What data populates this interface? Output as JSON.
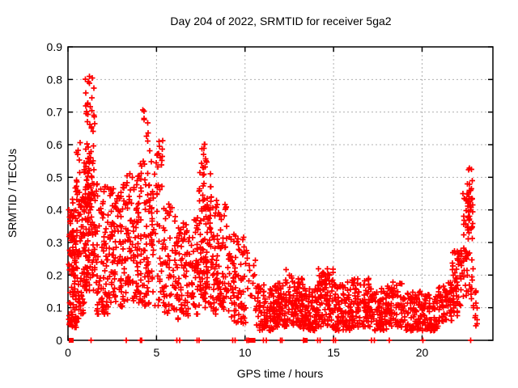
{
  "chart_data": {
    "type": "scatter",
    "title": "Day 204 of 2022, SRMTID for receiver 5ga2",
    "xlabel": "GPS time / hours",
    "ylabel": "SRMTID / TECUs",
    "xlim": [
      0,
      24
    ],
    "ylim": [
      0,
      0.9
    ],
    "xticks": [
      0,
      5,
      10,
      15,
      20
    ],
    "yticks": [
      0,
      0.1,
      0.2,
      0.3,
      0.4,
      0.5,
      0.6,
      0.7,
      0.8,
      0.9
    ],
    "grid": "dashed",
    "grid_color": "#b0b0b0",
    "border_color": "#000000",
    "legend": "none",
    "marker": "plus",
    "marker_color": "#ff0000",
    "marker_size_px": 7,
    "seed": 11,
    "cluster_fields": [
      "x_start_hours",
      "x_end_hours",
      "count",
      "y_min",
      "y_max",
      "low_skew"
    ],
    "clusters": [
      [
        0.05,
        0.6,
        110,
        0.04,
        0.47,
        1.4
      ],
      [
        0.1,
        0.45,
        18,
        0.25,
        0.4,
        1.0
      ],
      [
        0.45,
        0.75,
        10,
        0.45,
        0.62,
        1.0
      ],
      [
        0.6,
        0.95,
        45,
        0.08,
        0.45,
        1.15
      ],
      [
        0.9,
        1.55,
        140,
        0.15,
        0.57,
        0.95
      ],
      [
        0.95,
        1.5,
        30,
        0.55,
        0.81,
        1.0
      ],
      [
        1.55,
        2.25,
        80,
        0.08,
        0.48,
        1.2
      ],
      [
        2.25,
        3.1,
        95,
        0.1,
        0.47,
        1.15
      ],
      [
        3.1,
        4.0,
        100,
        0.12,
        0.52,
        1.1
      ],
      [
        4.0,
        4.6,
        70,
        0.1,
        0.55,
        1.1
      ],
      [
        4.2,
        4.55,
        8,
        0.6,
        0.71,
        1.0
      ],
      [
        4.6,
        5.4,
        75,
        0.1,
        0.62,
        1.2
      ],
      [
        5.4,
        6.1,
        55,
        0.08,
        0.42,
        1.3
      ],
      [
        6.1,
        6.7,
        32,
        0.22,
        0.37,
        1.0
      ],
      [
        6.1,
        6.7,
        30,
        0.05,
        0.22,
        1.0
      ],
      [
        6.7,
        7.4,
        60,
        0.07,
        0.38,
        1.2
      ],
      [
        7.4,
        8.1,
        105,
        0.1,
        0.52,
        1.1
      ],
      [
        7.5,
        7.95,
        13,
        0.5,
        0.62,
        1.0
      ],
      [
        8.1,
        9.0,
        95,
        0.08,
        0.43,
        1.25
      ],
      [
        9.0,
        10.05,
        85,
        0.05,
        0.33,
        1.25
      ],
      [
        10.05,
        10.6,
        16,
        0.12,
        0.28,
        1.0
      ],
      [
        10.6,
        11.6,
        90,
        0.03,
        0.17,
        1.15
      ],
      [
        11.6,
        12.35,
        85,
        0.04,
        0.18,
        1.2
      ],
      [
        12.3,
        12.65,
        22,
        0.06,
        0.22,
        1.0
      ],
      [
        12.65,
        13.3,
        80,
        0.04,
        0.19,
        1.2
      ],
      [
        13.3,
        14.1,
        80,
        0.03,
        0.16,
        1.25
      ],
      [
        14.1,
        15.0,
        95,
        0.04,
        0.22,
        1.25
      ],
      [
        15.0,
        16.0,
        95,
        0.03,
        0.18,
        1.3
      ],
      [
        16.0,
        17.0,
        95,
        0.04,
        0.19,
        1.25
      ],
      [
        17.0,
        18.0,
        85,
        0.03,
        0.16,
        1.3
      ],
      [
        18.0,
        19.0,
        85,
        0.04,
        0.18,
        1.25
      ],
      [
        19.0,
        20.0,
        85,
        0.03,
        0.15,
        1.3
      ],
      [
        20.0,
        20.9,
        75,
        0.03,
        0.14,
        1.25
      ],
      [
        20.9,
        21.7,
        65,
        0.05,
        0.18,
        1.15
      ],
      [
        21.7,
        22.3,
        55,
        0.07,
        0.28,
        1.05
      ],
      [
        22.3,
        22.9,
        70,
        0.1,
        0.47,
        1.0
      ],
      [
        22.55,
        22.85,
        10,
        0.42,
        0.53,
        1.0
      ],
      [
        22.9,
        23.15,
        10,
        0.04,
        0.16,
        1.0
      ]
    ],
    "baseline_points_x": [
      1.3,
      3.3,
      4.1,
      4.15,
      6.15,
      6.3,
      7.3,
      7.4,
      9.3,
      9.45,
      10.1,
      10.2,
      11.05,
      11.2,
      12.0,
      12.1,
      13.3,
      14.1,
      14.25,
      15.0,
      15.1,
      17.15,
      17.3,
      18.15,
      20.05,
      22.75
    ],
    "baseline_squares_x": [
      0.18,
      10.35,
      10.45,
      13.4
    ]
  }
}
